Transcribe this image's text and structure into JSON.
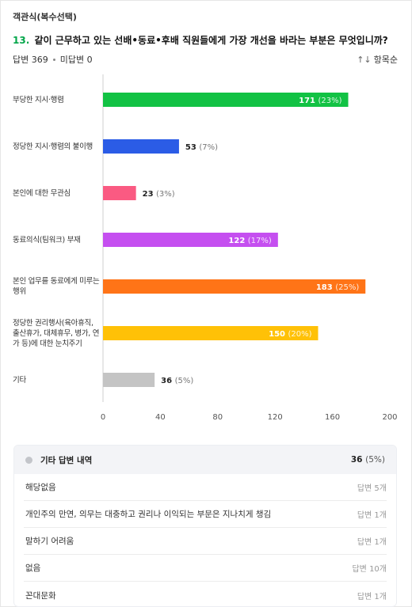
{
  "header": {
    "type_label": "객관식(복수선택)",
    "question_number": "13.",
    "question_text": "같이 근무하고 있는 선배•동료•후배 직원들에게 가장 개선을 바라는 부분은 무엇입니까?",
    "answered": "답변 369",
    "unanswered": "미답변 0",
    "sort_label": "항목순",
    "sort_icon": "sort-arrows-icon"
  },
  "chart_data": {
    "type": "bar",
    "orientation": "horizontal",
    "categories": [
      "부당한 지시·행렴",
      "정당한 지시·행렴의 불이행",
      "본인에 대한 무관심",
      "동료의식(팀워크) 부재",
      "본인 업무를 동료에게 미루는 행위",
      "정당한 권리행사(육아휴직, 출산휴가, 대체휴무, 병가, 연가 등)에 대한 눈치주기",
      "기타"
    ],
    "values": [
      171,
      53,
      23,
      122,
      183,
      150,
      36
    ],
    "value_labels": [
      "171",
      "53",
      "23",
      "122",
      "183",
      "150",
      "36"
    ],
    "percent_labels": [
      "(23%)",
      "(7%)",
      "(3%)",
      "(17%)",
      "(25%)",
      "(20%)",
      "(5%)"
    ],
    "colors": [
      "#12c244",
      "#2b5ce6",
      "#fa5a82",
      "#c54ff0",
      "#ff7417",
      "#ffc107",
      "#c4c4c4"
    ],
    "label_inside": [
      true,
      false,
      false,
      true,
      true,
      true,
      false
    ],
    "xlim": [
      0,
      200
    ],
    "xticks": [
      "0",
      "40",
      "80",
      "120",
      "160",
      "200"
    ],
    "xtick_values": [
      0,
      40,
      80,
      120,
      160,
      200
    ],
    "grid": false
  },
  "others": {
    "title": "기타 답변 내역",
    "total": "36",
    "total_pct": "(5%)",
    "rows": [
      {
        "text": "해당없음",
        "count": "답변 5개"
      },
      {
        "text": "개인주의 만연, 의무는 대충하고 권리나 이익되는 부문은 지나치게 챙김",
        "count": "답변 1개"
      },
      {
        "text": "말하기 어려움",
        "count": "답변 1개"
      },
      {
        "text": "없음",
        "count": "답변 10개"
      },
      {
        "text": "꼰대문화",
        "count": "답변 1개"
      }
    ]
  }
}
